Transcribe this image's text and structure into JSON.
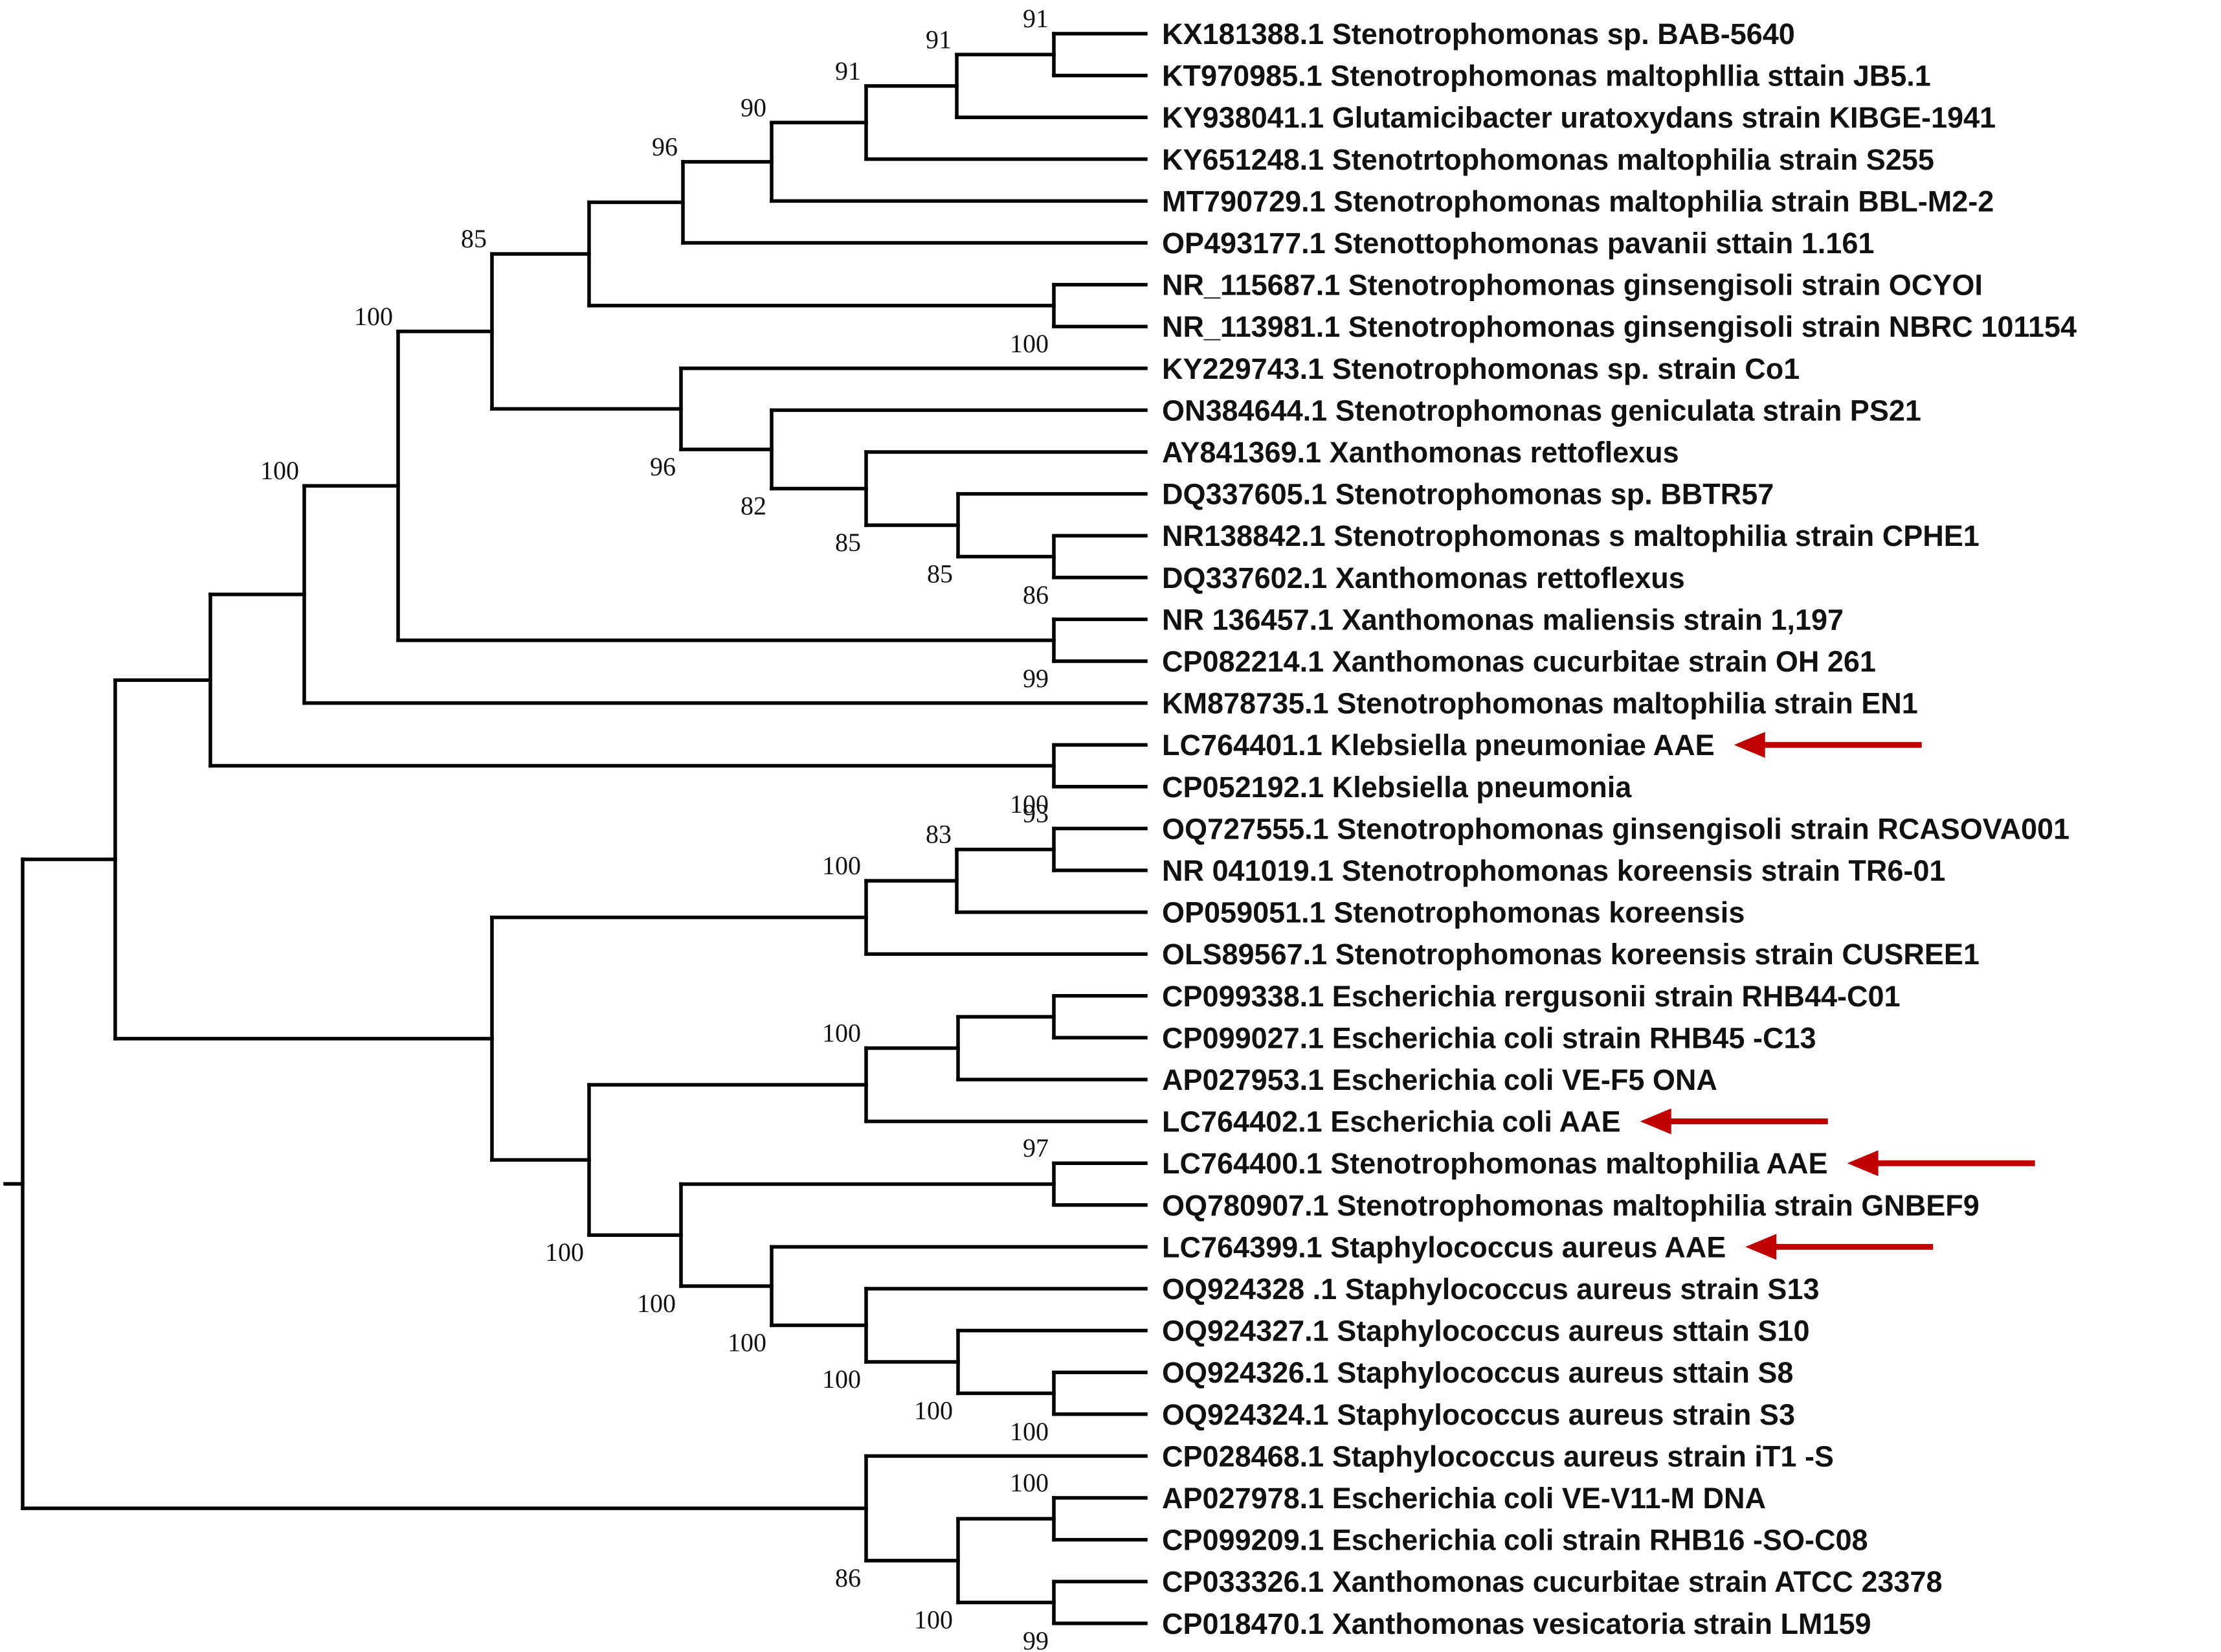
{
  "figure": {
    "type": "phylogenetic-tree"
  },
  "colors": {
    "branch": "#000000",
    "label": "#111111",
    "arrow": "#c00000"
  },
  "leaves": [
    {
      "accession": "KX181388.1",
      "name": "Stenotrophomonas sp. BAB-5640"
    },
    {
      "accession": "KT970985.1",
      "name": "Stenotrophomonas maltophllia sttain JB5.1"
    },
    {
      "accession": "KY938041.1",
      "name": "Glutamicibacter uratoxydans strain KIBGE-1941"
    },
    {
      "accession": "KY651248.1",
      "name": "Stenotrtophomonas maltophilia strain S255"
    },
    {
      "accession": "MT790729.1",
      "name": "Stenotrophomonas maltophilia strain BBL-M2-2"
    },
    {
      "accession": "OP493177.1",
      "name": "Stenottophomonas pavanii sttain 1.161"
    },
    {
      "accession": "NR_115687.1",
      "name": "Stenotrophomonas ginsengisoli strain OCYOI"
    },
    {
      "accession": "NR_113981.1",
      "name": "Stenotrophomonas ginsengisoli strain NBRC 101154"
    },
    {
      "accession": "KY229743.1",
      "name": "Stenotrophomonas sp. strain Co1"
    },
    {
      "accession": "ON384644.1",
      "name": "Stenotrophomonas geniculata strain PS21"
    },
    {
      "accession": "AY841369.1",
      "name": "Xanthomonas  rettoflexus"
    },
    {
      "accession": "DQ337605.1",
      "name": "Stenotrophomonas sp. BBTR57"
    },
    {
      "accession": "NR138842.1",
      "name": "Stenotrophomonas s maltophilia strain CPHE1"
    },
    {
      "accession": "DQ337602.1",
      "name": "Xanthomonas rettoflexus"
    },
    {
      "accession": "NR 136457.1",
      "name": "Xanthomonas  maliensis strain 1,197"
    },
    {
      "accession": "CP082214.1",
      "name": "Xanthomonas cucurbitae strain OH 261"
    },
    {
      "accession": "KM878735.1",
      "name": "Stenotrophomonas maltophilia strain EN1"
    },
    {
      "accession": "LC764401.1",
      "name": "Klebsiella pneumoniae AAE",
      "highlighted": true
    },
    {
      "accession": "CP052192.1",
      "name": "Klebsiella pneumonia"
    },
    {
      "accession": "OQ727555.1",
      "name": "Stenotrophomonas ginsengisoli strain RCASOVA001"
    },
    {
      "accession": "NR 041019.1",
      "name": "Stenotrophomonas  koreensis strain TR6-01"
    },
    {
      "accession": "OP059051.1",
      "name": "Stenotrophomonas  koreensis"
    },
    {
      "accession": "OLS89567.1",
      "name": "Stenotrophomonas  koreensis strain CUSREE1"
    },
    {
      "accession": "CP099338.1",
      "name": "Escherichia rergusonii strain RHB44-C01"
    },
    {
      "accession": "CP099027.1",
      "name": "Escherichia coli strain RHB45 -C13"
    },
    {
      "accession": "AP027953.1",
      "name": "Escherichia coli VE-F5 ONA"
    },
    {
      "accession": "LC764402.1",
      "name": "Escherichia coli AAE",
      "highlighted": true
    },
    {
      "accession": "LC764400.1",
      "name": "Stenotrophomonas maltophilia AAE",
      "highlighted": true
    },
    {
      "accession": "OQ780907.1",
      "name": "Stenotrophomonas maltophilia strain GNBEF9"
    },
    {
      "accession": "LC764399.1",
      "name": "Staphylococcus aureus AAE",
      "highlighted": true
    },
    {
      "accession": "OQ924328 .1",
      "name": "Staphylococcus aureus strain S13"
    },
    {
      "accession": "OQ924327.1",
      "name": "Staphylococcus aureus  sttain S10"
    },
    {
      "accession": "OQ924326.1",
      "name": "Staphylococcus aureus  sttain S8"
    },
    {
      "accession": "OQ924324.1",
      "name": "Staphylococcus aureus strain S3"
    },
    {
      "accession": "CP028468.1",
      "name": "Staphylococcus aureus strain iT1 -S"
    },
    {
      "accession": "AP027978.1",
      "name": "Escherichia coli VE-V11-M DNA"
    },
    {
      "accession": "CP099209.1",
      "name": "Escherichia coli strain RHB16 -SO-C08"
    },
    {
      "accession": "CP033326.1",
      "name": "Xanthomonas cucurbitae strain ATCC 23378"
    },
    {
      "accession": "CP018470.1",
      "name": "Xanthomonas vesicatoria strain LM159"
    }
  ],
  "bootstrap_values": {
    "n_ab": "91",
    "n_abc": "91",
    "n_abcd": "91",
    "n_abcde": "90",
    "n_abcdef": "96",
    "n_gh": "100",
    "n_lm": "86",
    "n_klm": "85",
    "n_km": "85",
    "n_jkm": "82",
    "n_ikm": "96",
    "n_op": "99",
    "n_stem": "100",
    "n_stenoQ": "85",
    "n_top": "100",
    "n_rs": "100",
    "n_tu": "93",
    "n_tuv": "83",
    "n_tuvw": "100",
    "n_ab2": "97",
    "n_gh2": "100",
    "n_fgh": "100",
    "n_efgh": "100",
    "n_dgh": "100",
    "n_c2": "100",
    "n_ecoli": "100",
    "n_lower": "100",
    "n_p2": "100",
    "n_r2": "99",
    "n_pqr": "100",
    "n_opqr": "86"
  }
}
